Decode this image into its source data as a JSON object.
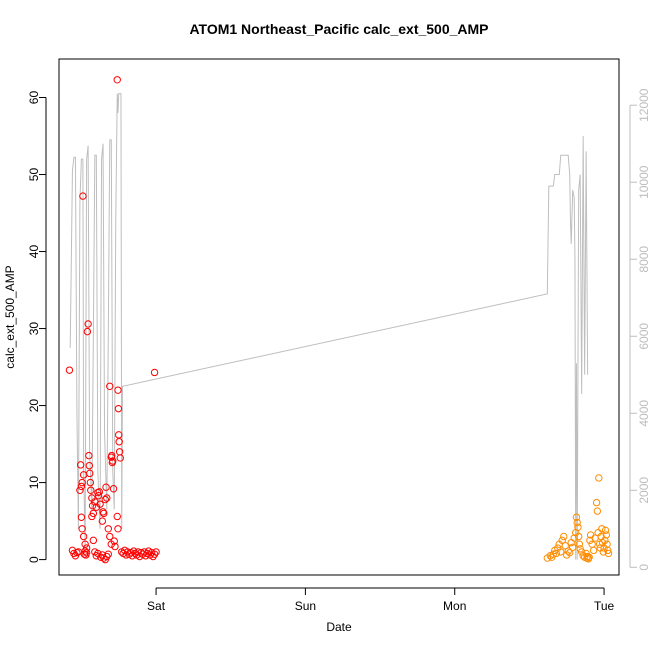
{
  "chart_data": {
    "type": "scatter",
    "title": "ATOM1 Northeast_Pacific calc_ext_500_AMP",
    "xlabel": "Date",
    "ylabel": "calc_ext_500_AMP",
    "x_ticks": [
      "Sat",
      "Sun",
      "Mon",
      "Tue"
    ],
    "xlim": [
      -0.65,
      3.1
    ],
    "ylim": [
      -2.0,
      65.0
    ],
    "y_ticks": [
      0,
      10,
      20,
      30,
      40,
      50,
      60
    ],
    "y2lim": [
      -200,
      13200
    ],
    "y2_ticks": [
      0,
      2000,
      4000,
      6000,
      8000,
      10000,
      12000
    ],
    "grid": false,
    "colors": {
      "series1": "#ff0000",
      "series2": "#ff8c00",
      "line": "#bebebe",
      "axis": "#000000",
      "axis_right": "#bdbdbd"
    },
    "series": [
      {
        "marker": "circle",
        "color": "#ff0000",
        "points": [
          [
            -0.58,
            24.6
          ],
          [
            -0.56,
            1.2
          ],
          [
            -0.55,
            0.8
          ],
          [
            -0.54,
            0.5
          ],
          [
            -0.53,
            0.9
          ],
          [
            -0.52,
            1.0
          ],
          [
            -0.51,
            9.0
          ],
          [
            -0.505,
            12.3
          ],
          [
            -0.5,
            9.5
          ],
          [
            -0.495,
            10.0
          ],
          [
            -0.49,
            47.2
          ],
          [
            -0.485,
            11.0
          ],
          [
            -0.48,
            0.7
          ],
          [
            -0.475,
            1.1
          ],
          [
            -0.47,
            0.6
          ],
          [
            -0.465,
            0.9
          ],
          [
            -0.46,
            29.6
          ],
          [
            -0.455,
            30.6
          ],
          [
            -0.45,
            13.5
          ],
          [
            -0.447,
            12.2
          ],
          [
            -0.444,
            11.2
          ],
          [
            -0.44,
            10.0
          ],
          [
            -0.437,
            9.0
          ],
          [
            -0.43,
            5.6
          ],
          [
            -0.42,
            2.5
          ],
          [
            -0.41,
            1.0
          ],
          [
            -0.4,
            0.5
          ],
          [
            -0.39,
            0.8
          ],
          [
            -0.5,
            5.5
          ],
          [
            -0.495,
            4.0
          ],
          [
            -0.485,
            3.0
          ],
          [
            -0.475,
            2.0
          ],
          [
            -0.465,
            1.5
          ],
          [
            -0.43,
            8.0
          ],
          [
            -0.425,
            7.0
          ],
          [
            -0.42,
            6.0
          ],
          [
            -0.41,
            7.5
          ],
          [
            -0.4,
            6.8
          ],
          [
            -0.39,
            8.7
          ],
          [
            -0.385,
            8.3
          ],
          [
            -0.38,
            8.8
          ],
          [
            -0.375,
            7.2
          ],
          [
            -0.37,
            0.3
          ],
          [
            -0.36,
            0.6
          ],
          [
            -0.35,
            0.2
          ],
          [
            -0.34,
            0.0
          ],
          [
            -0.33,
            0.4
          ],
          [
            -0.32,
            0.7
          ],
          [
            -0.36,
            5.0
          ],
          [
            -0.355,
            6.2
          ],
          [
            -0.35,
            6.0
          ],
          [
            -0.34,
            7.8
          ],
          [
            -0.335,
            9.4
          ],
          [
            -0.33,
            8.0
          ],
          [
            -0.32,
            4.0
          ],
          [
            -0.31,
            3.0
          ],
          [
            -0.3,
            2.0
          ],
          [
            -0.31,
            22.5
          ],
          [
            -0.3,
            13.3
          ],
          [
            -0.297,
            13.5
          ],
          [
            -0.293,
            12.6
          ],
          [
            -0.29,
            12.8
          ],
          [
            -0.285,
            9.2
          ],
          [
            -0.28,
            2.4
          ],
          [
            -0.275,
            1.7
          ],
          [
            -0.26,
            62.3
          ],
          [
            -0.255,
            22.0
          ],
          [
            -0.252,
            19.6
          ],
          [
            -0.25,
            16.2
          ],
          [
            -0.247,
            15.3
          ],
          [
            -0.244,
            14.0
          ],
          [
            -0.24,
            13.2
          ],
          [
            -0.26,
            5.6
          ],
          [
            -0.255,
            4.0
          ],
          [
            -0.23,
            1.0
          ],
          [
            -0.22,
            0.8
          ],
          [
            -0.21,
            1.2
          ],
          [
            -0.2,
            0.6
          ],
          [
            -0.19,
            1.0
          ],
          [
            -0.18,
            0.7
          ],
          [
            -0.17,
            0.9
          ],
          [
            -0.16,
            0.5
          ],
          [
            -0.15,
            1.1
          ],
          [
            -0.14,
            0.8
          ],
          [
            -0.13,
            0.6
          ],
          [
            -0.12,
            1.0
          ],
          [
            -0.11,
            0.4
          ],
          [
            -0.1,
            0.9
          ],
          [
            -0.09,
            0.7
          ],
          [
            -0.08,
            1.0
          ],
          [
            -0.07,
            0.5
          ],
          [
            -0.06,
            0.8
          ],
          [
            -0.05,
            1.1
          ],
          [
            -0.04,
            0.6
          ],
          [
            -0.03,
            0.9
          ],
          [
            -0.02,
            0.4
          ],
          [
            -0.01,
            0.7
          ],
          [
            0.0,
            1.0
          ],
          [
            -0.01,
            24.3
          ]
        ]
      },
      {
        "marker": "circle",
        "color": "#ff8c00",
        "points": [
          [
            2.62,
            0.2
          ],
          [
            2.64,
            0.5
          ],
          [
            2.65,
            0.3
          ],
          [
            2.66,
            0.7
          ],
          [
            2.67,
            1.2
          ],
          [
            2.68,
            0.8
          ],
          [
            2.69,
            1.5
          ],
          [
            2.7,
            2.0
          ],
          [
            2.71,
            1.0
          ],
          [
            2.72,
            2.5
          ],
          [
            2.73,
            3.0
          ],
          [
            2.74,
            1.8
          ],
          [
            2.75,
            0.6
          ],
          [
            2.76,
            1.1
          ],
          [
            2.77,
            0.9
          ],
          [
            2.78,
            2.2
          ],
          [
            2.79,
            1.6
          ],
          [
            2.8,
            2.8
          ],
          [
            2.81,
            3.5
          ],
          [
            2.815,
            5.5
          ],
          [
            2.82,
            4.8
          ],
          [
            2.825,
            4.2
          ],
          [
            2.83,
            3.0
          ],
          [
            2.835,
            2.0
          ],
          [
            2.84,
            1.4
          ],
          [
            2.85,
            1.0
          ],
          [
            2.86,
            0.5
          ],
          [
            2.87,
            0.3
          ],
          [
            2.88,
            0.8
          ],
          [
            2.885,
            0.2
          ],
          [
            2.89,
            0.4
          ],
          [
            2.895,
            0.1
          ],
          [
            2.9,
            0.3
          ],
          [
            2.905,
            2.5
          ],
          [
            2.91,
            3.2
          ],
          [
            2.92,
            2.0
          ],
          [
            2.93,
            1.2
          ],
          [
            2.94,
            2.8
          ],
          [
            2.95,
            7.4
          ],
          [
            2.955,
            6.3
          ],
          [
            2.96,
            3.5
          ],
          [
            2.965,
            10.6
          ],
          [
            2.97,
            2.0
          ],
          [
            2.975,
            1.5
          ],
          [
            2.98,
            3.0
          ],
          [
            2.985,
            4.0
          ],
          [
            2.99,
            2.2
          ],
          [
            2.995,
            1.0
          ],
          [
            3.0,
            1.5
          ],
          [
            3.005,
            2.5
          ],
          [
            3.01,
            3.8
          ],
          [
            3.015,
            3.2
          ],
          [
            3.02,
            2.0
          ],
          [
            3.025,
            1.2
          ],
          [
            3.03,
            0.8
          ]
        ]
      },
      {
        "type": "line",
        "axis": "right",
        "color": "#bebebe",
        "points": [
          [
            -0.575,
            5700
          ],
          [
            -0.56,
            10300
          ],
          [
            -0.55,
            10650
          ],
          [
            -0.54,
            10650
          ],
          [
            -0.53,
            4000
          ],
          [
            -0.52,
            1000
          ],
          [
            -0.51,
            9500
          ],
          [
            -0.5,
            10600
          ],
          [
            -0.49,
            10600
          ],
          [
            -0.485,
            2500
          ],
          [
            -0.475,
            500
          ],
          [
            -0.465,
            10600
          ],
          [
            -0.455,
            10950
          ],
          [
            -0.445,
            3000
          ],
          [
            -0.43,
            1500
          ],
          [
            -0.42,
            6000
          ],
          [
            -0.41,
            10700
          ],
          [
            -0.4,
            10700
          ],
          [
            -0.39,
            2500
          ],
          [
            -0.375,
            1000
          ],
          [
            -0.365,
            10600
          ],
          [
            -0.355,
            11000
          ],
          [
            -0.345,
            3500
          ],
          [
            -0.33,
            1500
          ],
          [
            -0.32,
            6000
          ],
          [
            -0.31,
            11100
          ],
          [
            -0.3,
            11100
          ],
          [
            -0.29,
            2500
          ],
          [
            -0.28,
            1500
          ],
          [
            -0.27,
            9000
          ],
          [
            -0.26,
            12300
          ],
          [
            -0.255,
            11800
          ],
          [
            -0.25,
            12300
          ],
          [
            -0.24,
            12300
          ],
          [
            -0.235,
            12300
          ],
          [
            -0.23,
            1000
          ],
          [
            -0.225,
            4700
          ],
          [
            2.62,
            7100
          ],
          [
            2.63,
            9900
          ],
          [
            2.66,
            9900
          ],
          [
            2.67,
            10200
          ],
          [
            2.7,
            10200
          ],
          [
            2.71,
            10700
          ],
          [
            2.76,
            10700
          ],
          [
            2.77,
            10200
          ],
          [
            2.775,
            9000
          ],
          [
            2.78,
            8400
          ],
          [
            2.79,
            9800
          ],
          [
            2.8,
            9600
          ],
          [
            2.805,
            8000
          ],
          [
            2.81,
            200
          ],
          [
            2.815,
            5300
          ],
          [
            2.82,
            200
          ],
          [
            2.83,
            9800
          ],
          [
            2.84,
            10200
          ],
          [
            2.85,
            4500
          ],
          [
            2.86,
            11200
          ],
          [
            2.87,
            5000
          ],
          [
            2.88,
            10800
          ],
          [
            2.89,
            5000
          ]
        ]
      }
    ]
  }
}
